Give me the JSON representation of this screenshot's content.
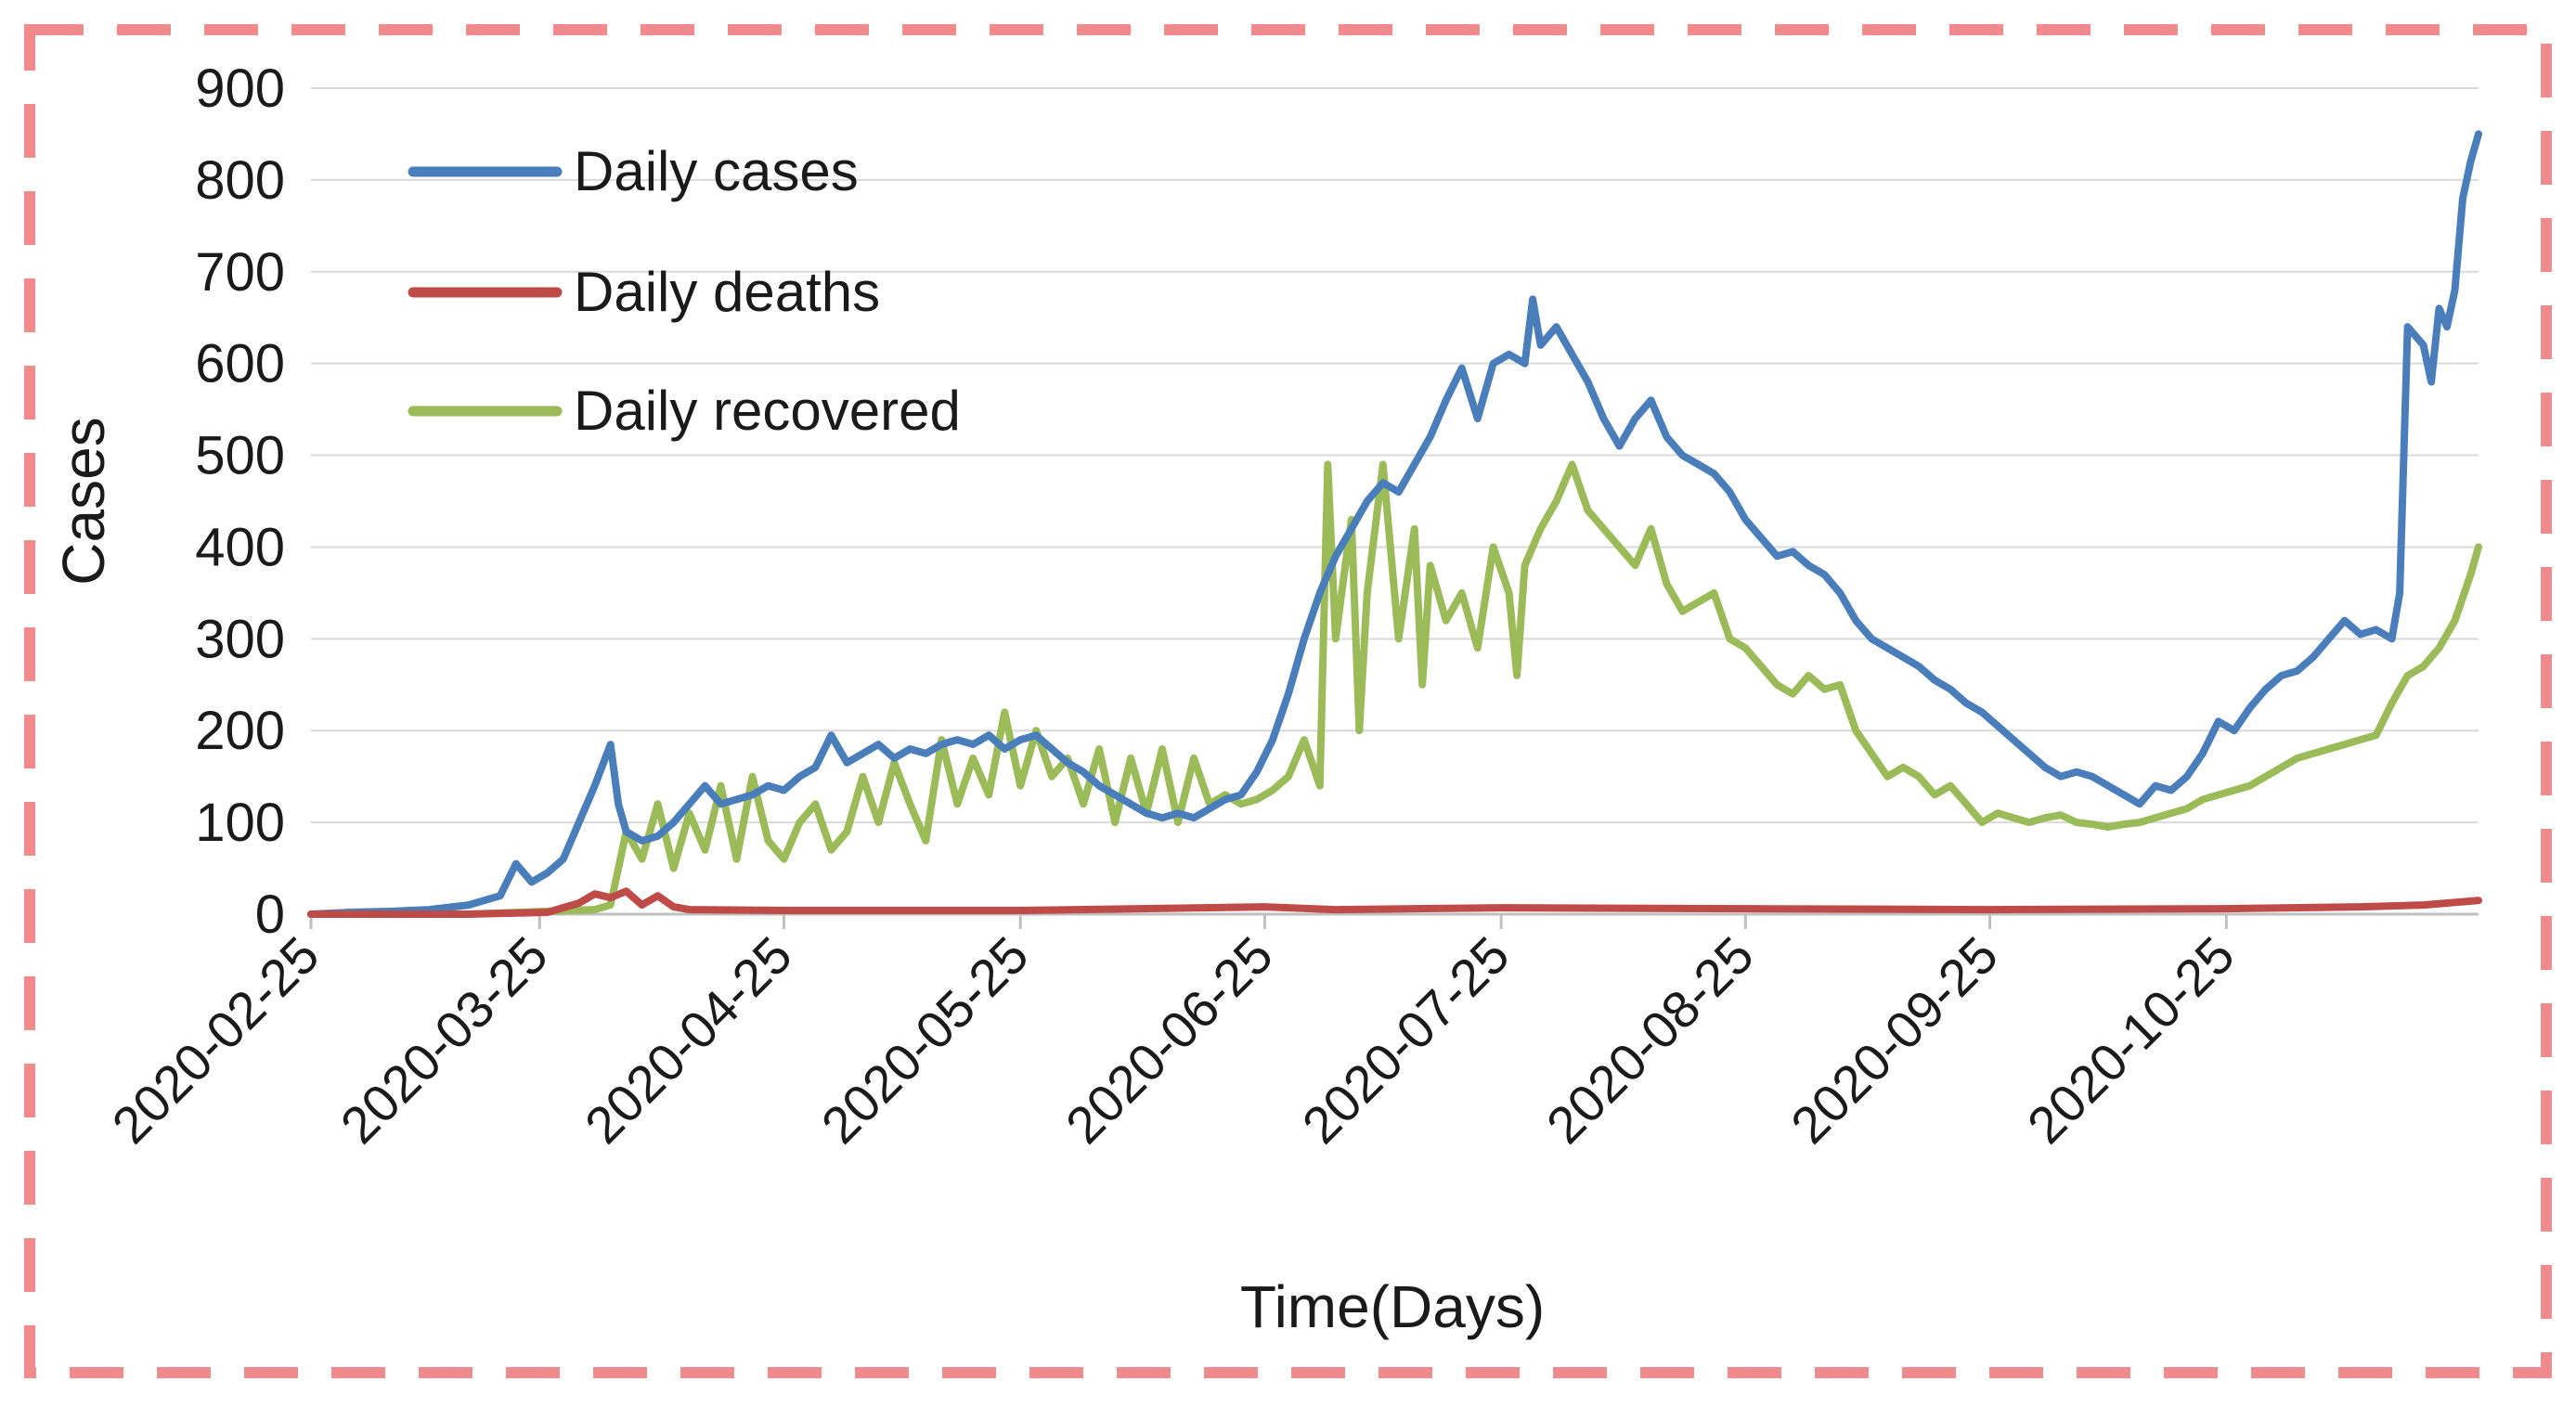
{
  "chart_data": {
    "type": "line",
    "title": "",
    "xlabel": "Time(Days)",
    "ylabel": "Cases",
    "ylim": [
      0,
      900
    ],
    "yticks": [
      0,
      100,
      200,
      300,
      400,
      500,
      600,
      700,
      800,
      900
    ],
    "x_start": "2020-02-25",
    "x_end": "2020-11-14",
    "xtick_labels": [
      "2020-02-25",
      "2020-03-25",
      "2020-04-25",
      "2020-05-25",
      "2020-06-25",
      "2020-07-25",
      "2020-08-25",
      "2020-09-25",
      "2020-10-25"
    ],
    "xtick_days": [
      0,
      29,
      60,
      90,
      121,
      151,
      182,
      213,
      243
    ],
    "grid": true,
    "legend_position": "top-left",
    "series": [
      {
        "name": "Daily cases",
        "color": "#4a7ebb",
        "points": [
          [
            0,
            0
          ],
          [
            5,
            2
          ],
          [
            10,
            3
          ],
          [
            15,
            5
          ],
          [
            20,
            10
          ],
          [
            24,
            20
          ],
          [
            26,
            55
          ],
          [
            28,
            35
          ],
          [
            30,
            45
          ],
          [
            32,
            60
          ],
          [
            34,
            100
          ],
          [
            36,
            140
          ],
          [
            38,
            185
          ],
          [
            39,
            120
          ],
          [
            40,
            90
          ],
          [
            42,
            80
          ],
          [
            44,
            85
          ],
          [
            46,
            100
          ],
          [
            48,
            120
          ],
          [
            50,
            140
          ],
          [
            52,
            120
          ],
          [
            54,
            125
          ],
          [
            56,
            130
          ],
          [
            58,
            140
          ],
          [
            60,
            135
          ],
          [
            62,
            150
          ],
          [
            64,
            160
          ],
          [
            66,
            195
          ],
          [
            68,
            165
          ],
          [
            70,
            175
          ],
          [
            72,
            185
          ],
          [
            74,
            170
          ],
          [
            76,
            180
          ],
          [
            78,
            175
          ],
          [
            80,
            185
          ],
          [
            82,
            190
          ],
          [
            84,
            185
          ],
          [
            86,
            195
          ],
          [
            88,
            180
          ],
          [
            90,
            190
          ],
          [
            92,
            195
          ],
          [
            94,
            180
          ],
          [
            96,
            165
          ],
          [
            98,
            155
          ],
          [
            100,
            140
          ],
          [
            102,
            130
          ],
          [
            104,
            120
          ],
          [
            106,
            110
          ],
          [
            108,
            105
          ],
          [
            110,
            110
          ],
          [
            112,
            105
          ],
          [
            114,
            115
          ],
          [
            116,
            125
          ],
          [
            118,
            130
          ],
          [
            120,
            155
          ],
          [
            122,
            190
          ],
          [
            124,
            240
          ],
          [
            126,
            300
          ],
          [
            128,
            350
          ],
          [
            130,
            390
          ],
          [
            132,
            420
          ],
          [
            134,
            450
          ],
          [
            136,
            470
          ],
          [
            138,
            460
          ],
          [
            140,
            490
          ],
          [
            142,
            520
          ],
          [
            144,
            560
          ],
          [
            146,
            595
          ],
          [
            148,
            540
          ],
          [
            150,
            600
          ],
          [
            152,
            610
          ],
          [
            154,
            600
          ],
          [
            155,
            670
          ],
          [
            156,
            620
          ],
          [
            158,
            640
          ],
          [
            160,
            610
          ],
          [
            162,
            580
          ],
          [
            164,
            540
          ],
          [
            166,
            510
          ],
          [
            168,
            540
          ],
          [
            170,
            560
          ],
          [
            172,
            520
          ],
          [
            174,
            500
          ],
          [
            176,
            490
          ],
          [
            178,
            480
          ],
          [
            180,
            460
          ],
          [
            182,
            430
          ],
          [
            184,
            410
          ],
          [
            186,
            390
          ],
          [
            188,
            395
          ],
          [
            190,
            380
          ],
          [
            192,
            370
          ],
          [
            194,
            350
          ],
          [
            196,
            320
          ],
          [
            198,
            300
          ],
          [
            200,
            290
          ],
          [
            202,
            280
          ],
          [
            204,
            270
          ],
          [
            206,
            255
          ],
          [
            208,
            245
          ],
          [
            210,
            230
          ],
          [
            212,
            220
          ],
          [
            214,
            205
          ],
          [
            216,
            190
          ],
          [
            218,
            175
          ],
          [
            220,
            160
          ],
          [
            222,
            150
          ],
          [
            224,
            155
          ],
          [
            226,
            150
          ],
          [
            228,
            140
          ],
          [
            230,
            130
          ],
          [
            232,
            120
          ],
          [
            234,
            140
          ],
          [
            236,
            135
          ],
          [
            238,
            150
          ],
          [
            240,
            175
          ],
          [
            242,
            210
          ],
          [
            244,
            200
          ],
          [
            246,
            225
          ],
          [
            248,
            245
          ],
          [
            250,
            260
          ],
          [
            252,
            265
          ],
          [
            254,
            280
          ],
          [
            256,
            300
          ],
          [
            258,
            320
          ],
          [
            260,
            305
          ],
          [
            262,
            310
          ],
          [
            264,
            300
          ],
          [
            265,
            350
          ],
          [
            266,
            640
          ],
          [
            268,
            620
          ],
          [
            269,
            580
          ],
          [
            270,
            660
          ],
          [
            271,
            640
          ],
          [
            272,
            680
          ],
          [
            273,
            780
          ],
          [
            274,
            820
          ],
          [
            275,
            850
          ]
        ]
      },
      {
        "name": "Daily deaths",
        "color": "#be4b48",
        "points": [
          [
            0,
            0
          ],
          [
            20,
            0
          ],
          [
            30,
            2
          ],
          [
            34,
            12
          ],
          [
            36,
            22
          ],
          [
            38,
            18
          ],
          [
            40,
            25
          ],
          [
            42,
            10
          ],
          [
            44,
            20
          ],
          [
            46,
            8
          ],
          [
            48,
            5
          ],
          [
            60,
            4
          ],
          [
            90,
            4
          ],
          [
            121,
            8
          ],
          [
            130,
            5
          ],
          [
            151,
            7
          ],
          [
            182,
            6
          ],
          [
            213,
            5
          ],
          [
            243,
            6
          ],
          [
            260,
            8
          ],
          [
            268,
            10
          ],
          [
            275,
            15
          ]
        ]
      },
      {
        "name": "Daily recovered",
        "color": "#9bbb59",
        "points": [
          [
            0,
            0
          ],
          [
            20,
            0
          ],
          [
            36,
            5
          ],
          [
            38,
            10
          ],
          [
            40,
            90
          ],
          [
            42,
            60
          ],
          [
            44,
            120
          ],
          [
            46,
            50
          ],
          [
            48,
            110
          ],
          [
            50,
            70
          ],
          [
            52,
            140
          ],
          [
            54,
            60
          ],
          [
            56,
            150
          ],
          [
            58,
            80
          ],
          [
            60,
            60
          ],
          [
            62,
            100
          ],
          [
            64,
            120
          ],
          [
            66,
            70
          ],
          [
            68,
            90
          ],
          [
            70,
            150
          ],
          [
            72,
            100
          ],
          [
            74,
            165
          ],
          [
            76,
            120
          ],
          [
            78,
            80
          ],
          [
            80,
            190
          ],
          [
            82,
            120
          ],
          [
            84,
            170
          ],
          [
            86,
            130
          ],
          [
            88,
            220
          ],
          [
            90,
            140
          ],
          [
            92,
            200
          ],
          [
            94,
            150
          ],
          [
            96,
            170
          ],
          [
            98,
            120
          ],
          [
            100,
            180
          ],
          [
            102,
            100
          ],
          [
            104,
            170
          ],
          [
            106,
            110
          ],
          [
            108,
            180
          ],
          [
            110,
            100
          ],
          [
            112,
            170
          ],
          [
            114,
            120
          ],
          [
            116,
            130
          ],
          [
            118,
            120
          ],
          [
            120,
            125
          ],
          [
            122,
            135
          ],
          [
            124,
            150
          ],
          [
            126,
            190
          ],
          [
            128,
            140
          ],
          [
            129,
            490
          ],
          [
            130,
            300
          ],
          [
            132,
            430
          ],
          [
            133,
            200
          ],
          [
            134,
            350
          ],
          [
            136,
            490
          ],
          [
            138,
            300
          ],
          [
            140,
            420
          ],
          [
            141,
            250
          ],
          [
            142,
            380
          ],
          [
            144,
            320
          ],
          [
            146,
            350
          ],
          [
            148,
            290
          ],
          [
            150,
            400
          ],
          [
            152,
            350
          ],
          [
            153,
            260
          ],
          [
            154,
            380
          ],
          [
            156,
            420
          ],
          [
            158,
            450
          ],
          [
            160,
            490
          ],
          [
            162,
            440
          ],
          [
            164,
            420
          ],
          [
            166,
            400
          ],
          [
            168,
            380
          ],
          [
            170,
            420
          ],
          [
            172,
            360
          ],
          [
            174,
            330
          ],
          [
            176,
            340
          ],
          [
            178,
            350
          ],
          [
            180,
            300
          ],
          [
            182,
            290
          ],
          [
            184,
            270
          ],
          [
            186,
            250
          ],
          [
            188,
            240
          ],
          [
            190,
            260
          ],
          [
            192,
            245
          ],
          [
            194,
            250
          ],
          [
            196,
            200
          ],
          [
            198,
            175
          ],
          [
            200,
            150
          ],
          [
            202,
            160
          ],
          [
            204,
            150
          ],
          [
            206,
            130
          ],
          [
            208,
            140
          ],
          [
            210,
            120
          ],
          [
            212,
            100
          ],
          [
            214,
            110
          ],
          [
            216,
            105
          ],
          [
            218,
            100
          ],
          [
            220,
            105
          ],
          [
            222,
            108
          ],
          [
            224,
            100
          ],
          [
            226,
            98
          ],
          [
            228,
            95
          ],
          [
            230,
            98
          ],
          [
            232,
            100
          ],
          [
            234,
            105
          ],
          [
            236,
            110
          ],
          [
            238,
            115
          ],
          [
            240,
            125
          ],
          [
            242,
            130
          ],
          [
            244,
            135
          ],
          [
            246,
            140
          ],
          [
            248,
            150
          ],
          [
            250,
            160
          ],
          [
            252,
            170
          ],
          [
            254,
            175
          ],
          [
            256,
            180
          ],
          [
            258,
            185
          ],
          [
            260,
            190
          ],
          [
            262,
            195
          ],
          [
            264,
            230
          ],
          [
            266,
            260
          ],
          [
            268,
            270
          ],
          [
            270,
            290
          ],
          [
            272,
            320
          ],
          [
            274,
            370
          ],
          [
            275,
            400
          ]
        ]
      }
    ]
  }
}
